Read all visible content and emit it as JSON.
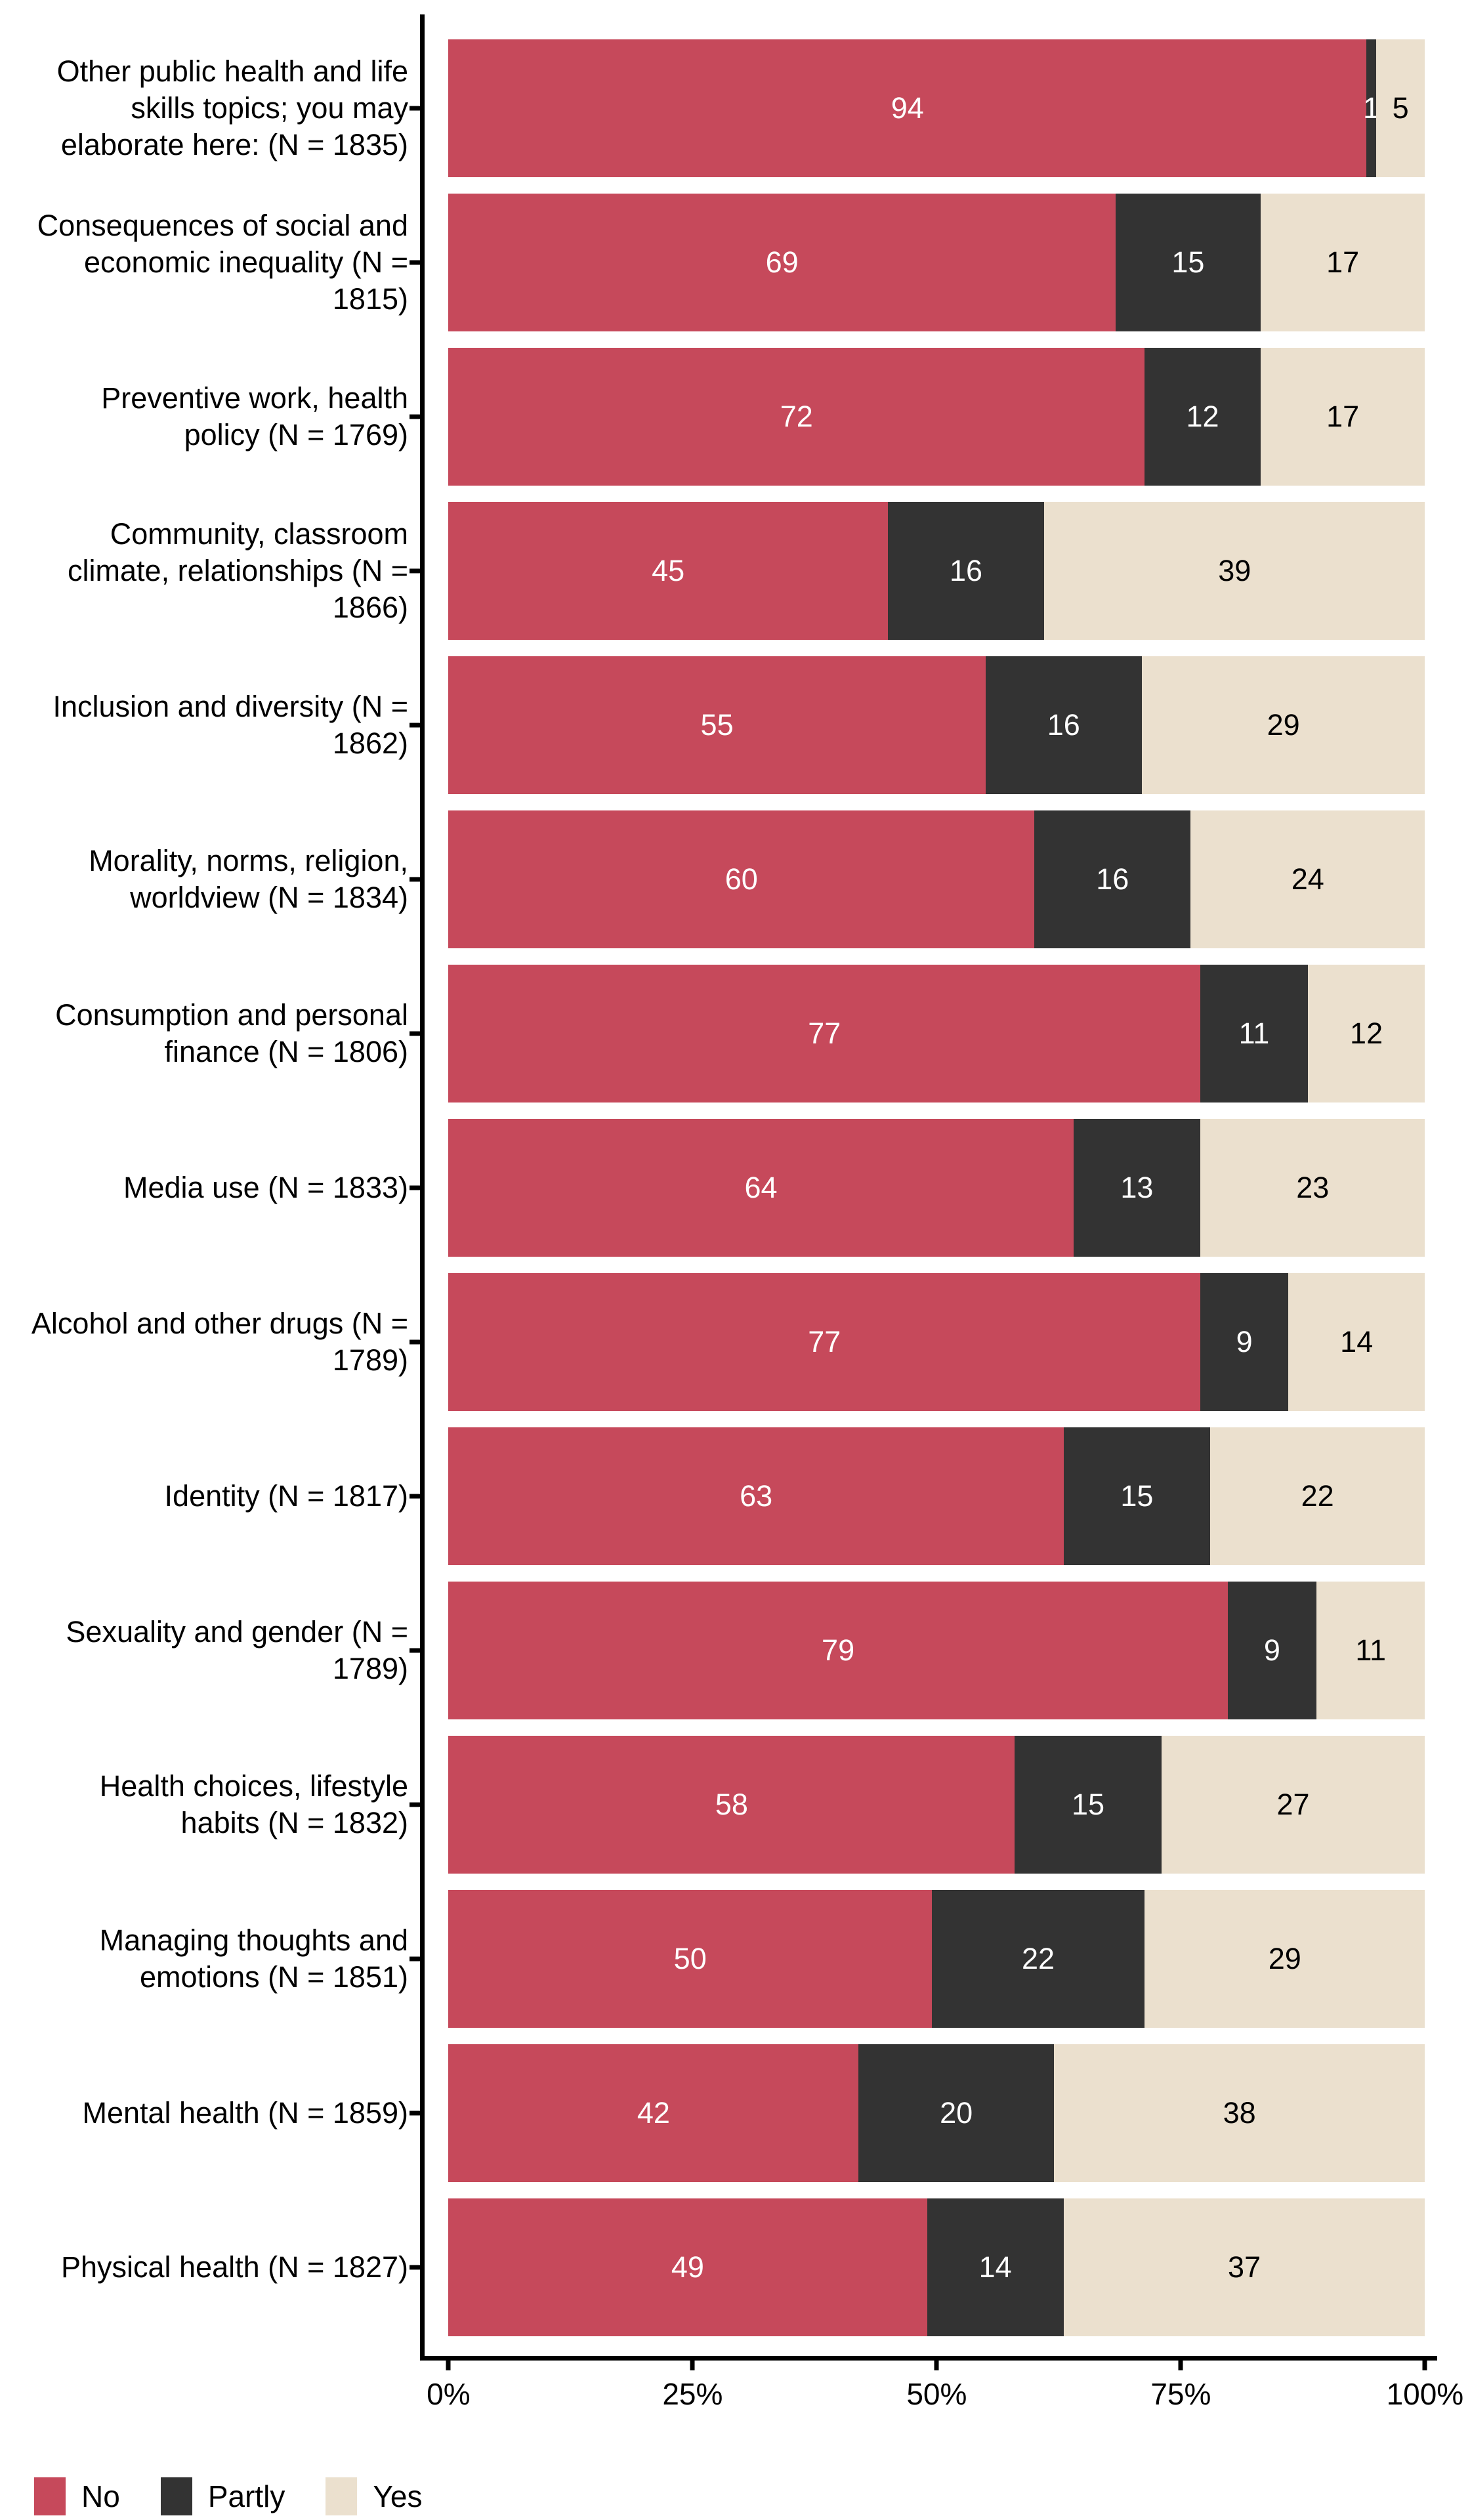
{
  "figure": {
    "background": "#ffffff",
    "axis_color": "#000000",
    "text_color": "#000000"
  },
  "chart_data": {
    "type": "bar",
    "orientation": "horizontal",
    "stacked": true,
    "unit": "percent",
    "title": "",
    "xlabel": "",
    "ylabel": "",
    "xlim": [
      0,
      100
    ],
    "grid": false,
    "legend_position": "bottom-left",
    "x_tick_labels": [
      "0%",
      "25%",
      "50%",
      "75%",
      "100%"
    ],
    "x_tick_values": [
      0,
      25,
      50,
      75,
      100
    ],
    "categories": [
      "Other public health and life skills topics; you may elaborate here: (N = 1835)",
      "Consequences of social and economic inequality (N = 1815)",
      "Preventive work, health policy (N = 1769)",
      "Community, classroom climate, relationships (N = 1866)",
      "Inclusion and diversity (N = 1862)",
      "Morality, norms, religion, worldview (N = 1834)",
      "Consumption and personal finance (N = 1806)",
      "Media use (N = 1833)",
      "Alcohol and other drugs (N = 1789)",
      "Identity (N = 1817)",
      "Sexuality and gender (N = 1789)",
      "Health choices, lifestyle habits (N = 1832)",
      "Managing thoughts and emotions (N = 1851)",
      "Mental health (N = 1859)",
      "Physical health (N = 1827)"
    ],
    "series": [
      {
        "name": "No",
        "color": "#C6495B",
        "label_color": "#ffffff",
        "values": [
          94,
          69,
          72,
          45,
          55,
          60,
          77,
          64,
          77,
          63,
          79,
          58,
          50,
          42,
          49
        ]
      },
      {
        "name": "Partly",
        "color": "#333333",
        "label_color": "#ffffff",
        "values": [
          1,
          15,
          12,
          16,
          16,
          16,
          11,
          13,
          9,
          15,
          9,
          15,
          22,
          20,
          14
        ]
      },
      {
        "name": "Yes",
        "color": "#EBE0CE",
        "label_color": "#000000",
        "values": [
          5,
          17,
          17,
          39,
          29,
          24,
          12,
          23,
          14,
          22,
          11,
          27,
          29,
          38,
          37
        ]
      }
    ]
  },
  "legend": {
    "items": [
      {
        "label": "No",
        "color": "#C6495B"
      },
      {
        "label": "Partly",
        "color": "#333333"
      },
      {
        "label": "Yes",
        "color": "#EBE0CE"
      }
    ]
  }
}
